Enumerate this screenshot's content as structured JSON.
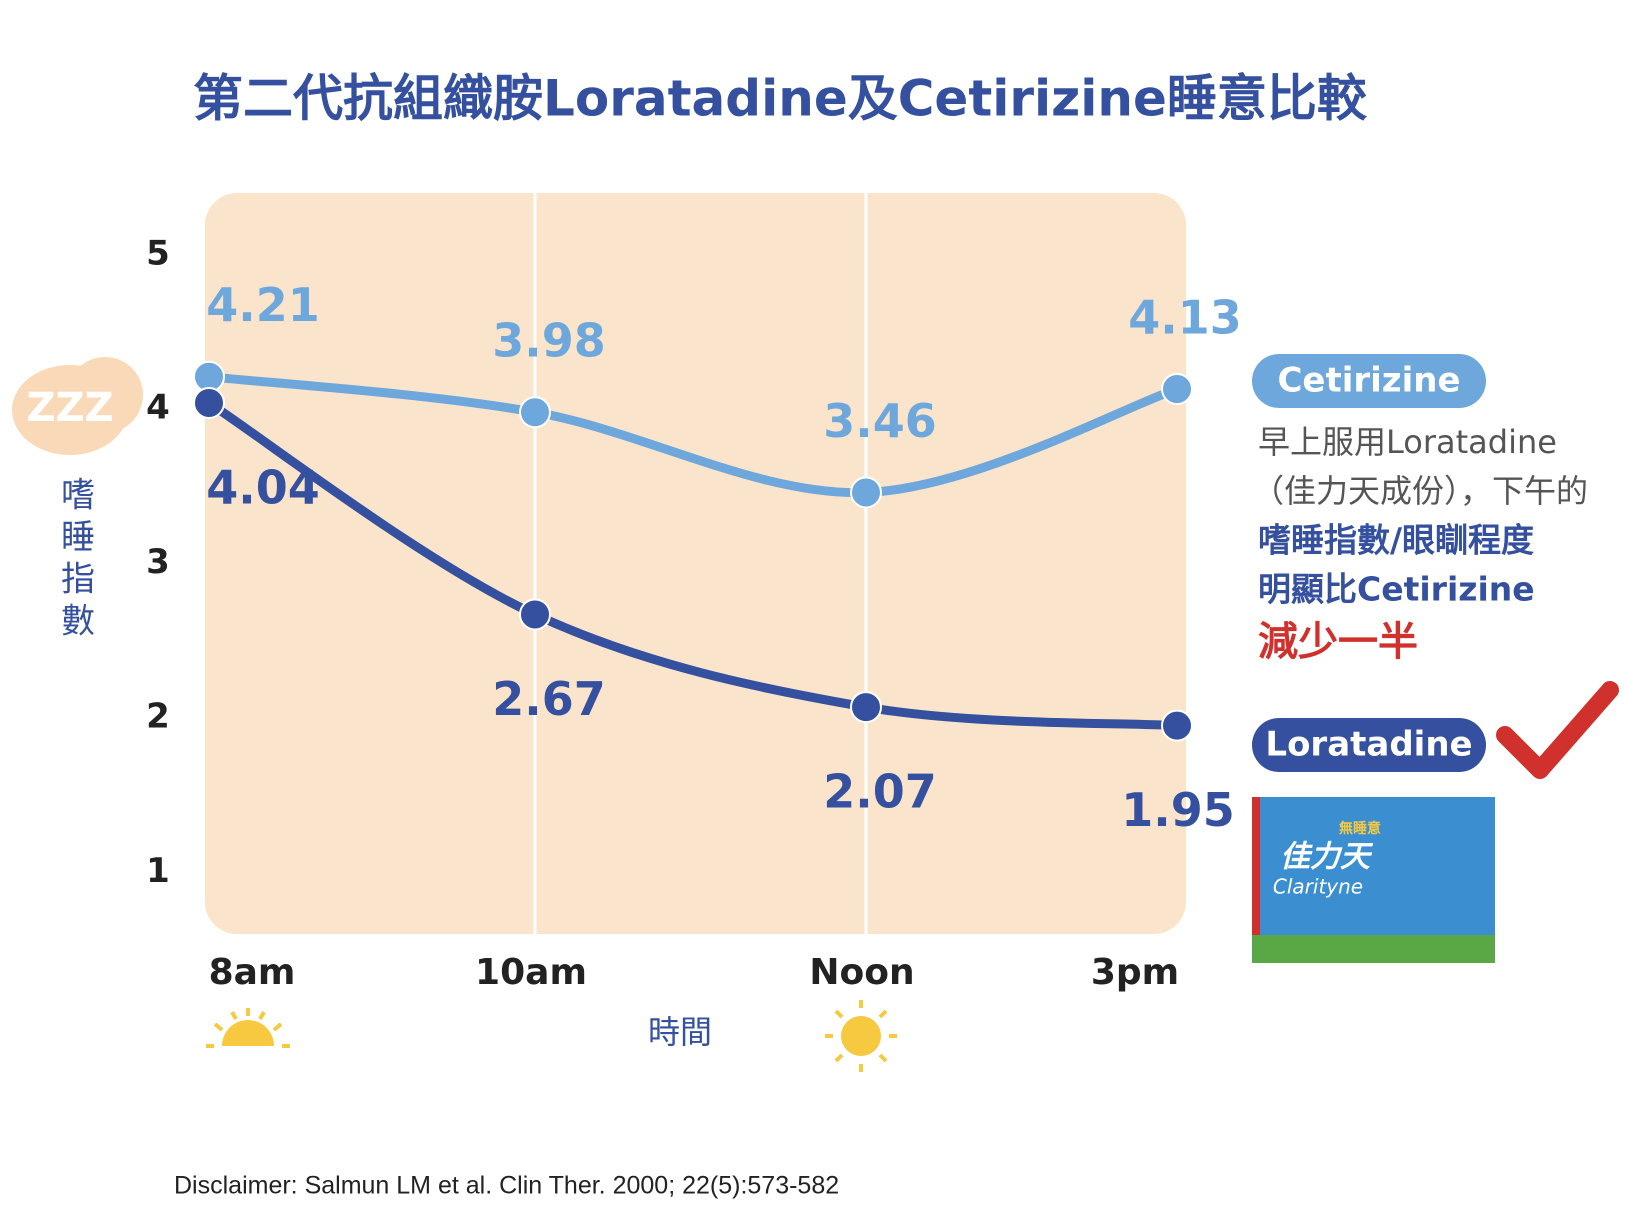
{
  "chart_data": {
    "type": "line",
    "title": "第二代抗組織胺Loratadine及Cetirizine睡意比較",
    "x_label": "時間",
    "y_label": "嗜睡指數",
    "categories": [
      "8am",
      "10am",
      "Noon",
      "3pm"
    ],
    "series": [
      {
        "name": "Cetirizine",
        "color": "#6ea7dc",
        "values": [
          4.21,
          3.98,
          3.46,
          4.13
        ]
      },
      {
        "name": "Loratadine",
        "color": "#34509f",
        "values": [
          4.04,
          2.67,
          2.07,
          1.95
        ]
      }
    ],
    "ylim": [
      0.6,
      5.4
    ],
    "yticks": [
      1,
      2,
      3,
      4,
      5
    ],
    "x_grid": true,
    "annotation": [
      "早上服用Loratadine",
      "（佳力天成份），下午的",
      "嗜睡指數/眼瞓程度",
      "明顯比Cetirizine",
      "減少一半"
    ],
    "product": {
      "tag": "無睡意",
      "brand": "佳力天",
      "name": "Clarityne"
    },
    "disclaimer": "Disclaimer: Salmun LM et al. Clin Ther. 2000; 22(5):573-582"
  }
}
